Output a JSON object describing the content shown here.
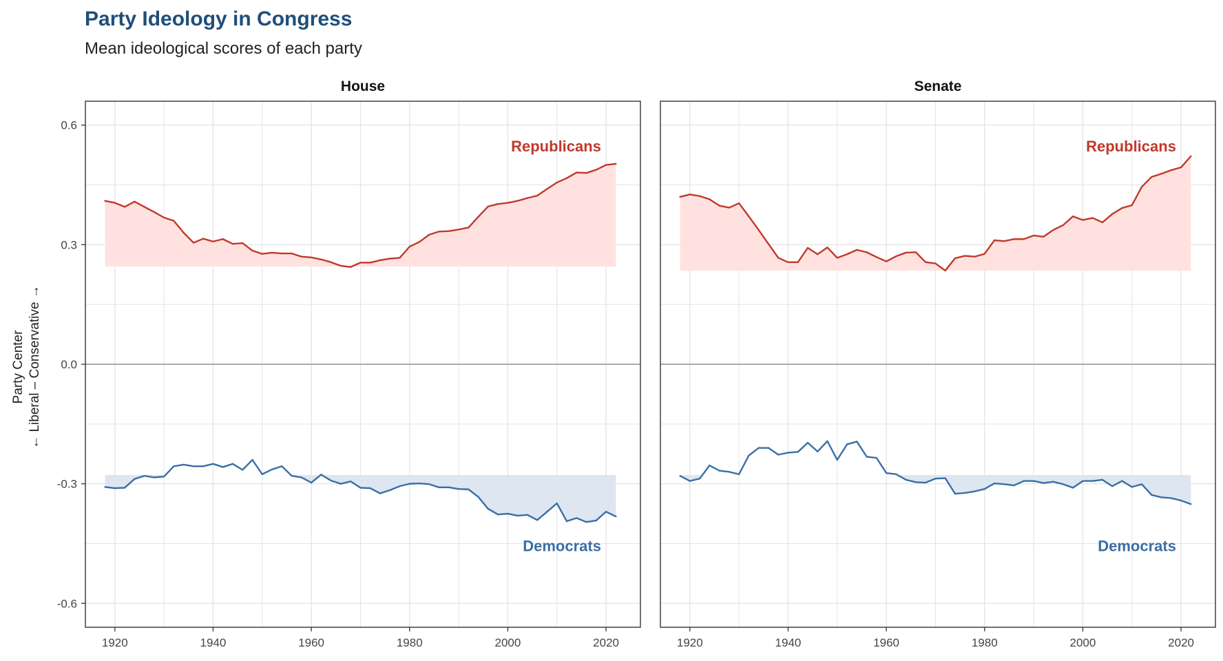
{
  "title": "Party Ideology in Congress",
  "subtitle": "Mean ideological scores of each party",
  "chart_data": {
    "type": "line",
    "ylabel_line1": "Party Center",
    "ylabel_line2": "← Liberal – Conservative →",
    "ylim": [
      -0.66,
      0.66
    ],
    "xlim": [
      1914,
      2027
    ],
    "yticks": [
      0.6,
      0.3,
      0.0,
      -0.3,
      -0.6
    ],
    "ytick_labels": [
      "0.6",
      "0.3",
      "0.0",
      "-0.3",
      "-0.6"
    ],
    "xticks": [
      1920,
      1940,
      1960,
      1980,
      2000,
      2020
    ],
    "xtick_labels": [
      "1920",
      "1940",
      "1960",
      "1980",
      "2000",
      "2020"
    ],
    "grid": true,
    "colors": {
      "republican": "#c0392b",
      "republican_fill": "#ffe2e0",
      "democrat": "#3a6ea5",
      "democrat_fill": "#dde6f1",
      "zero_line": "#aaaaaa",
      "grid": "#e3e3e3"
    },
    "panels": [
      {
        "name": "House",
        "series": [
          {
            "name": "Republicans",
            "color": "#c0392b",
            "fill_baseline": 0.245,
            "x": [
              1918,
              1920,
              1922,
              1924,
              1926,
              1928,
              1930,
              1932,
              1934,
              1936,
              1938,
              1940,
              1942,
              1944,
              1946,
              1948,
              1950,
              1952,
              1954,
              1956,
              1958,
              1960,
              1962,
              1964,
              1966,
              1968,
              1970,
              1972,
              1974,
              1976,
              1978,
              1980,
              1982,
              1984,
              1986,
              1988,
              1990,
              1992,
              1994,
              1996,
              1998,
              2000,
              2002,
              2004,
              2006,
              2008,
              2010,
              2012,
              2014,
              2016,
              2018,
              2020,
              2022
            ],
            "values": [
              0.41,
              0.405,
              0.395,
              0.408,
              0.395,
              0.382,
              0.368,
              0.36,
              0.33,
              0.305,
              0.315,
              0.308,
              0.314,
              0.302,
              0.304,
              0.285,
              0.277,
              0.28,
              0.278,
              0.278,
              0.27,
              0.268,
              0.263,
              0.256,
              0.247,
              0.244,
              0.255,
              0.255,
              0.261,
              0.265,
              0.267,
              0.295,
              0.307,
              0.325,
              0.333,
              0.334,
              0.338,
              0.343,
              0.37,
              0.396,
              0.402,
              0.405,
              0.41,
              0.417,
              0.423,
              0.44,
              0.456,
              0.467,
              0.481,
              0.48,
              0.488,
              0.5,
              0.503
            ]
          },
          {
            "name": "Democrats",
            "color": "#3a6ea5",
            "fill_baseline": -0.278,
            "x": [
              1918,
              1920,
              1922,
              1924,
              1926,
              1928,
              1930,
              1932,
              1934,
              1936,
              1938,
              1940,
              1942,
              1944,
              1946,
              1948,
              1950,
              1952,
              1954,
              1956,
              1958,
              1960,
              1962,
              1964,
              1966,
              1968,
              1970,
              1972,
              1974,
              1976,
              1978,
              1980,
              1982,
              1984,
              1986,
              1988,
              1990,
              1992,
              1994,
              1996,
              1998,
              2000,
              2002,
              2004,
              2006,
              2008,
              2010,
              2012,
              2014,
              2016,
              2018,
              2020,
              2022
            ],
            "values": [
              -0.308,
              -0.311,
              -0.31,
              -0.288,
              -0.28,
              -0.284,
              -0.282,
              -0.256,
              -0.252,
              -0.256,
              -0.256,
              -0.25,
              -0.258,
              -0.25,
              -0.265,
              -0.24,
              -0.276,
              -0.264,
              -0.256,
              -0.28,
              -0.284,
              -0.297,
              -0.277,
              -0.292,
              -0.3,
              -0.294,
              -0.31,
              -0.311,
              -0.324,
              -0.316,
              -0.306,
              -0.3,
              -0.299,
              -0.301,
              -0.309,
              -0.309,
              -0.313,
              -0.314,
              -0.333,
              -0.363,
              -0.377,
              -0.375,
              -0.38,
              -0.378,
              -0.391,
              -0.37,
              -0.349,
              -0.394,
              -0.386,
              -0.396,
              -0.392,
              -0.37,
              -0.382
            ]
          }
        ]
      },
      {
        "name": "Senate",
        "series": [
          {
            "name": "Republicans",
            "color": "#c0392b",
            "fill_baseline": 0.235,
            "x": [
              1918,
              1920,
              1922,
              1924,
              1926,
              1928,
              1930,
              1932,
              1934,
              1936,
              1938,
              1940,
              1942,
              1944,
              1946,
              1948,
              1950,
              1952,
              1954,
              1956,
              1958,
              1960,
              1962,
              1964,
              1966,
              1968,
              1970,
              1972,
              1974,
              1976,
              1978,
              1980,
              1982,
              1984,
              1986,
              1988,
              1990,
              1992,
              1994,
              1996,
              1998,
              2000,
              2002,
              2004,
              2006,
              2008,
              2010,
              2012,
              2014,
              2016,
              2018,
              2020,
              2022
            ],
            "values": [
              0.42,
              0.426,
              0.422,
              0.414,
              0.398,
              0.393,
              0.404,
              0.371,
              0.337,
              0.302,
              0.267,
              0.256,
              0.256,
              0.292,
              0.276,
              0.293,
              0.267,
              0.276,
              0.287,
              0.281,
              0.269,
              0.258,
              0.271,
              0.28,
              0.281,
              0.256,
              0.253,
              0.235,
              0.266,
              0.272,
              0.27,
              0.277,
              0.311,
              0.309,
              0.314,
              0.314,
              0.323,
              0.32,
              0.337,
              0.349,
              0.371,
              0.362,
              0.367,
              0.356,
              0.377,
              0.392,
              0.399,
              0.445,
              0.47,
              0.478,
              0.487,
              0.494,
              0.522
            ]
          },
          {
            "name": "Democrats",
            "color": "#3a6ea5",
            "fill_baseline": -0.278,
            "x": [
              1918,
              1920,
              1922,
              1924,
              1926,
              1928,
              1930,
              1932,
              1934,
              1936,
              1938,
              1940,
              1942,
              1944,
              1946,
              1948,
              1950,
              1952,
              1954,
              1956,
              1958,
              1960,
              1962,
              1964,
              1966,
              1968,
              1970,
              1972,
              1974,
              1976,
              1978,
              1980,
              1982,
              1984,
              1986,
              1988,
              1990,
              1992,
              1994,
              1996,
              1998,
              2000,
              2002,
              2004,
              2006,
              2008,
              2010,
              2012,
              2014,
              2016,
              2018,
              2020,
              2022
            ],
            "values": [
              -0.28,
              -0.293,
              -0.287,
              -0.254,
              -0.267,
              -0.27,
              -0.276,
              -0.229,
              -0.21,
              -0.21,
              -0.227,
              -0.222,
              -0.22,
              -0.197,
              -0.219,
              -0.193,
              -0.24,
              -0.201,
              -0.194,
              -0.232,
              -0.235,
              -0.273,
              -0.276,
              -0.29,
              -0.296,
              -0.297,
              -0.287,
              -0.286,
              -0.325,
              -0.323,
              -0.319,
              -0.313,
              -0.299,
              -0.301,
              -0.304,
              -0.293,
              -0.293,
              -0.298,
              -0.295,
              -0.301,
              -0.31,
              -0.293,
              -0.293,
              -0.29,
              -0.306,
              -0.293,
              -0.308,
              -0.301,
              -0.328,
              -0.334,
              -0.336,
              -0.342,
              -0.351
            ]
          }
        ]
      }
    ]
  }
}
